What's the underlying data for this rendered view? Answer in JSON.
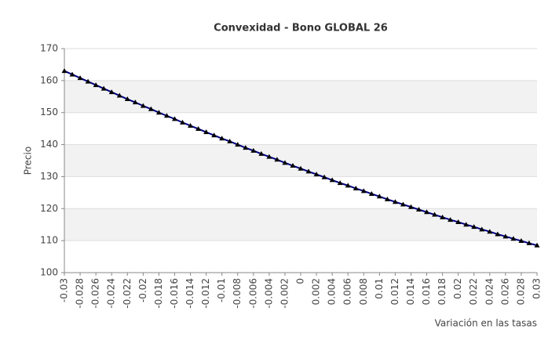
{
  "chart_data": {
    "type": "line",
    "title": "Convexidad - Bono GLOBAL 26",
    "xlabel": "Variación en las tasas",
    "ylabel": "Precio",
    "x": [
      -0.03,
      -0.029,
      -0.028,
      -0.027,
      -0.026,
      -0.025,
      -0.024,
      -0.023,
      -0.022,
      -0.021,
      -0.02,
      -0.019,
      -0.018,
      -0.017,
      -0.016,
      -0.015,
      -0.014,
      -0.013,
      -0.012,
      -0.011,
      -0.01,
      -0.009,
      -0.008,
      -0.007,
      -0.006,
      -0.005,
      -0.004,
      -0.003,
      -0.002,
      -0.001,
      0,
      0.001,
      0.002,
      0.003,
      0.004,
      0.005,
      0.006,
      0.007,
      0.008,
      0.009,
      0.01,
      0.011,
      0.012,
      0.013,
      0.014,
      0.015,
      0.016,
      0.017,
      0.018,
      0.019,
      0.02,
      0.021,
      0.022,
      0.023,
      0.024,
      0.025,
      0.026,
      0.027,
      0.028,
      0.029,
      0.03
    ],
    "series": [
      {
        "name": "Precio",
        "color": "#000080",
        "marker": "triangle",
        "marker_color": "#000000",
        "values": [
          163.0,
          161.9,
          160.8,
          159.7,
          158.6,
          157.5,
          156.4,
          155.3,
          154.2,
          153.2,
          152.1,
          151.1,
          150.0,
          149.0,
          148.0,
          146.9,
          145.9,
          144.9,
          143.9,
          142.9,
          141.9,
          141.0,
          140.0,
          139.0,
          138.1,
          137.1,
          136.2,
          135.3,
          134.3,
          133.4,
          132.5,
          131.6,
          130.7,
          129.8,
          128.9,
          128.0,
          127.2,
          126.3,
          125.5,
          124.6,
          123.8,
          122.9,
          122.1,
          121.3,
          120.5,
          119.7,
          118.9,
          118.1,
          117.3,
          116.5,
          115.8,
          115.0,
          114.3,
          113.5,
          112.8,
          112.0,
          111.3,
          110.6,
          109.9,
          109.2,
          108.5
        ]
      }
    ],
    "xlim": [
      -0.03,
      0.03
    ],
    "xticks": [
      -0.03,
      -0.028,
      -0.026,
      -0.024,
      -0.022,
      -0.02,
      -0.018,
      -0.016,
      -0.014,
      -0.012,
      -0.01,
      -0.008,
      -0.006,
      -0.004,
      -0.002,
      0,
      0.002,
      0.004,
      0.006,
      0.008,
      0.01,
      0.012,
      0.014,
      0.016,
      0.018,
      0.02,
      0.022,
      0.024,
      0.026,
      0.028,
      0.03
    ],
    "ylim": [
      100,
      170
    ],
    "yticks": [
      100,
      110,
      120,
      130,
      140,
      150,
      160,
      170
    ],
    "grid": true,
    "legend": false
  }
}
